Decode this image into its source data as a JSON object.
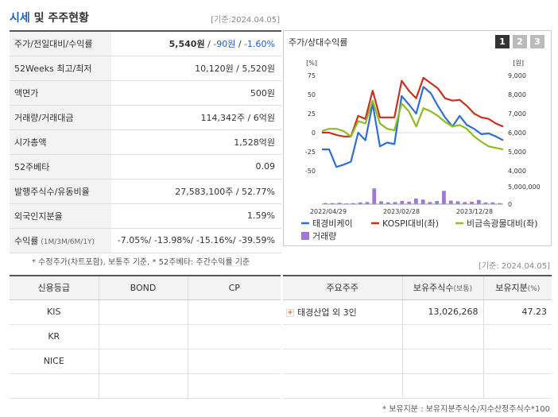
{
  "header": {
    "title_accent": "시세",
    "title_rest": " 및 주주현황",
    "date": "[기준:2024.04.05]"
  },
  "info": {
    "rows": [
      {
        "label": "주가/전일대비/수익률",
        "price": "5,540원",
        "sep1": " / ",
        "change": "-90원",
        "sep2": " / ",
        "rate": "-1.60%"
      },
      {
        "label": "52Weeks 최고/최저",
        "value": "10,120원 / 5,520원"
      },
      {
        "label": "액면가",
        "value": "500원"
      },
      {
        "label": "거래량/거래대금",
        "value": "114,342주 / 6억원"
      },
      {
        "label": "시가총액",
        "value": "1,528억원"
      },
      {
        "label": "52주베타",
        "value": "0.09"
      },
      {
        "label": "발행주식수/유동비율",
        "value": "27,583,100주 / 52.77%"
      },
      {
        "label": "외국인지분율",
        "value": "1.59%"
      },
      {
        "label": "수익률",
        "sublabel": " (1M/3M/6M/1Y)",
        "value": "-7.05%/ -13.98%/ -15.16%/ -39.59%"
      }
    ],
    "note": "* 수정주가(차트포함), 보통주 기준, * 52주베타: 주간수익률 기준"
  },
  "chart_panel": {
    "title": "주가/상대수익률",
    "pages": [
      "1",
      "2",
      "3"
    ]
  },
  "chart_data": {
    "type": "line",
    "left_axis_unit": "[%]",
    "right_axis_unit": "[원]",
    "left_ticks": [
      "75",
      "50",
      "25",
      "0",
      "-25",
      "-50"
    ],
    "right_ticks": [
      "9,000",
      "8,000",
      "7,000",
      "6,000",
      "5,000",
      "4,000"
    ],
    "volume_ticks": [
      "5,000,000",
      "0"
    ],
    "x_ticks": [
      "2022/04/29",
      "2023/02/28",
      "2023/12/28"
    ],
    "ylim_left": [
      -50,
      75
    ],
    "ylim_right": [
      4000,
      9000
    ],
    "series": [
      {
        "name": "태경비케이",
        "color": "#2d6fd4",
        "axis": "left",
        "values": [
          -22,
          -22,
          -45,
          -42,
          -38,
          0,
          -10,
          38,
          -18,
          -13,
          -15,
          48,
          37,
          25,
          60,
          52,
          35,
          20,
          8,
          22,
          10,
          5,
          -2,
          -1,
          -5,
          -10
        ]
      },
      {
        "name": "KOSPI대비(좌)",
        "color": "#c8311c",
        "axis": "left",
        "values": [
          0,
          0,
          -3,
          -5,
          -5,
          22,
          18,
          55,
          20,
          20,
          20,
          68,
          55,
          45,
          72,
          65,
          58,
          45,
          42,
          43,
          35,
          25,
          20,
          18,
          12,
          8
        ]
      },
      {
        "name": "비금속광물대비(좌)",
        "color": "#8ebc21",
        "axis": "left",
        "values": [
          2,
          5,
          5,
          2,
          -5,
          15,
          12,
          42,
          12,
          5,
          3,
          38,
          28,
          8,
          32,
          28,
          22,
          14,
          8,
          10,
          5,
          -5,
          -12,
          -18,
          -20,
          -22
        ]
      }
    ],
    "volume": {
      "name": "거래량",
      "color": "#9f78d4",
      "values": [
        0.3,
        0.3,
        0.4,
        0.2,
        0.3,
        0.5,
        0.6,
        4.5,
        0.8,
        0.5,
        0.6,
        0.9,
        0.7,
        1.6,
        1.3,
        0.6,
        0.9,
        3.8,
        1.0,
        0.8,
        0.6,
        0.7,
        1.2,
        0.5,
        0.5,
        0.3
      ],
      "unit": "millions of shares"
    },
    "legend_placement": "bottom"
  },
  "credit": {
    "headers": [
      "신용등급",
      "BOND",
      "CP"
    ],
    "rows": [
      [
        "KIS",
        "",
        ""
      ],
      [
        "KR",
        "",
        ""
      ],
      [
        "NICE",
        "",
        ""
      ],
      [
        "",
        "",
        ""
      ]
    ]
  },
  "holders": {
    "date": "[기준: 2024.04.05]",
    "headers": [
      "주요주주",
      "보유주식수",
      "(보통)",
      "보유지분",
      "(%)"
    ],
    "rows": [
      {
        "name": "태경산업 외 3인",
        "shares": "13,026,268",
        "pct": "47.23"
      }
    ],
    "note": "* 보유지분 : 보유지분주식수/지수산정주식수*100"
  },
  "colors": {
    "accent": "#1f5fbf",
    "negative": "#1d5bd6"
  }
}
